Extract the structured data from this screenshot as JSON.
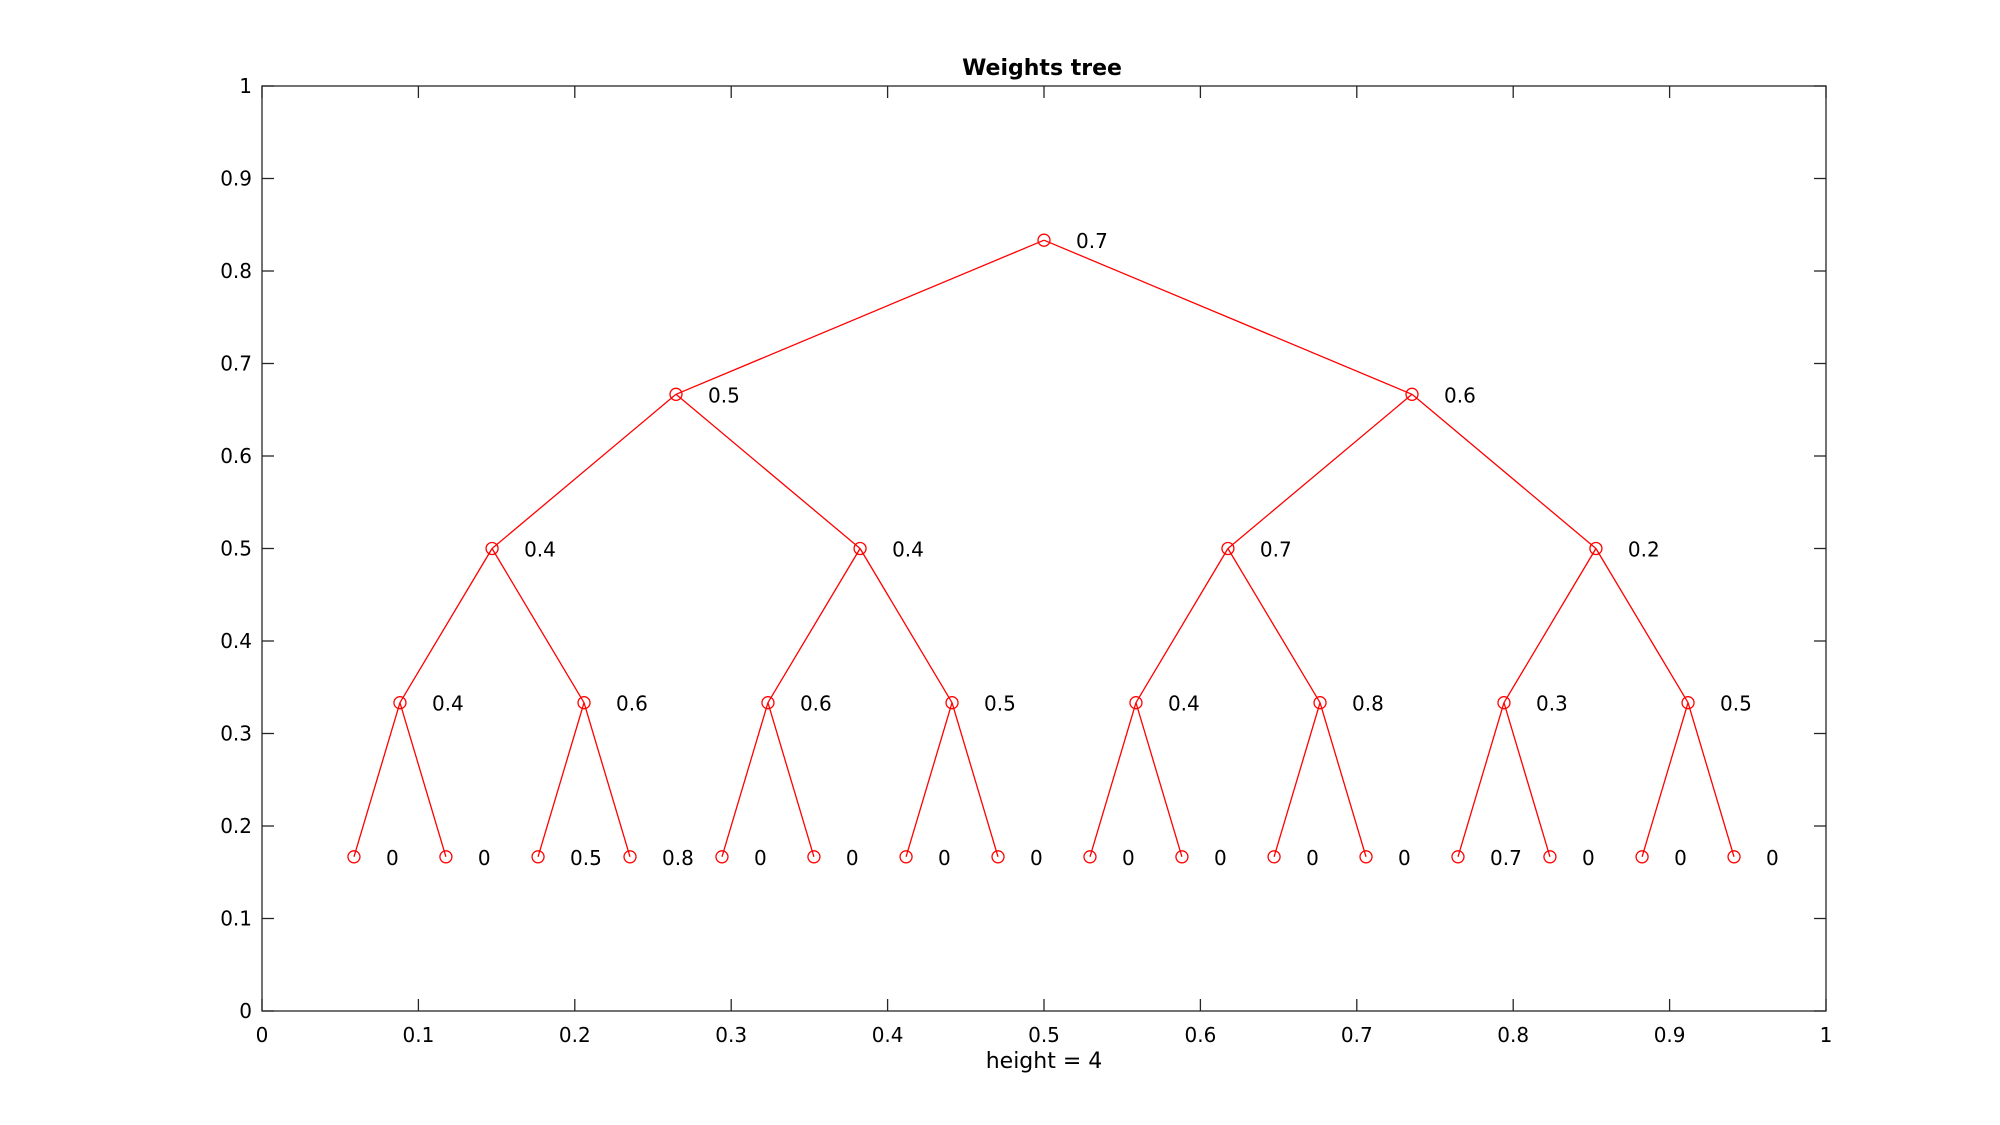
{
  "chart_data": {
    "type": "tree",
    "title": "Weights tree",
    "xlabel": "height = 4",
    "ylabel": "",
    "xlim": [
      0,
      1
    ],
    "ylim": [
      0,
      1
    ],
    "xticks": [
      "0",
      "0.1",
      "0.2",
      "0.3",
      "0.4",
      "0.5",
      "0.6",
      "0.7",
      "0.8",
      "0.9",
      "1"
    ],
    "yticks": [
      "0",
      "0.1",
      "0.2",
      "0.3",
      "0.4",
      "0.5",
      "0.6",
      "0.7",
      "0.8",
      "0.9",
      "1"
    ],
    "grid": false,
    "legend": "none",
    "colors": {
      "tree": "#ff0000",
      "axes": "#262626",
      "text": "#000000"
    },
    "nodes": [
      {
        "id": "n1",
        "x": 0.5,
        "y": 0.8333,
        "label": "0.7"
      },
      {
        "id": "n2",
        "x": 0.2647,
        "y": 0.6667,
        "label": "0.5"
      },
      {
        "id": "n3",
        "x": 0.7353,
        "y": 0.6667,
        "label": "0.6"
      },
      {
        "id": "n4",
        "x": 0.1471,
        "y": 0.5,
        "label": "0.4"
      },
      {
        "id": "n5",
        "x": 0.3824,
        "y": 0.5,
        "label": "0.4"
      },
      {
        "id": "n6",
        "x": 0.6176,
        "y": 0.5,
        "label": "0.7"
      },
      {
        "id": "n7",
        "x": 0.8529,
        "y": 0.5,
        "label": "0.2"
      },
      {
        "id": "n8",
        "x": 0.0882,
        "y": 0.3333,
        "label": "0.4"
      },
      {
        "id": "n9",
        "x": 0.2059,
        "y": 0.3333,
        "label": "0.6"
      },
      {
        "id": "n10",
        "x": 0.3235,
        "y": 0.3333,
        "label": "0.6"
      },
      {
        "id": "n11",
        "x": 0.4412,
        "y": 0.3333,
        "label": "0.5"
      },
      {
        "id": "n12",
        "x": 0.5588,
        "y": 0.3333,
        "label": "0.4"
      },
      {
        "id": "n13",
        "x": 0.6765,
        "y": 0.3333,
        "label": "0.8"
      },
      {
        "id": "n14",
        "x": 0.7941,
        "y": 0.3333,
        "label": "0.3"
      },
      {
        "id": "n15",
        "x": 0.9118,
        "y": 0.3333,
        "label": "0.5"
      },
      {
        "id": "n16",
        "x": 0.0588,
        "y": 0.1667,
        "label": "0"
      },
      {
        "id": "n17",
        "x": 0.1176,
        "y": 0.1667,
        "label": "0"
      },
      {
        "id": "n18",
        "x": 0.1765,
        "y": 0.1667,
        "label": "0.5"
      },
      {
        "id": "n19",
        "x": 0.2353,
        "y": 0.1667,
        "label": "0.8"
      },
      {
        "id": "n20",
        "x": 0.2941,
        "y": 0.1667,
        "label": "0"
      },
      {
        "id": "n21",
        "x": 0.3529,
        "y": 0.1667,
        "label": "0"
      },
      {
        "id": "n22",
        "x": 0.4118,
        "y": 0.1667,
        "label": "0"
      },
      {
        "id": "n23",
        "x": 0.4706,
        "y": 0.1667,
        "label": "0"
      },
      {
        "id": "n24",
        "x": 0.5294,
        "y": 0.1667,
        "label": "0"
      },
      {
        "id": "n25",
        "x": 0.5882,
        "y": 0.1667,
        "label": "0"
      },
      {
        "id": "n26",
        "x": 0.6471,
        "y": 0.1667,
        "label": "0"
      },
      {
        "id": "n27",
        "x": 0.7059,
        "y": 0.1667,
        "label": "0"
      },
      {
        "id": "n28",
        "x": 0.7647,
        "y": 0.1667,
        "label": "0.7"
      },
      {
        "id": "n29",
        "x": 0.8235,
        "y": 0.1667,
        "label": "0"
      },
      {
        "id": "n30",
        "x": 0.8824,
        "y": 0.1667,
        "label": "0"
      },
      {
        "id": "n31",
        "x": 0.9412,
        "y": 0.1667,
        "label": "0"
      }
    ],
    "edges": [
      [
        "n1",
        "n2"
      ],
      [
        "n1",
        "n3"
      ],
      [
        "n2",
        "n4"
      ],
      [
        "n2",
        "n5"
      ],
      [
        "n3",
        "n6"
      ],
      [
        "n3",
        "n7"
      ],
      [
        "n4",
        "n8"
      ],
      [
        "n4",
        "n9"
      ],
      [
        "n5",
        "n10"
      ],
      [
        "n5",
        "n11"
      ],
      [
        "n6",
        "n12"
      ],
      [
        "n6",
        "n13"
      ],
      [
        "n7",
        "n14"
      ],
      [
        "n7",
        "n15"
      ],
      [
        "n8",
        "n16"
      ],
      [
        "n8",
        "n17"
      ],
      [
        "n9",
        "n18"
      ],
      [
        "n9",
        "n19"
      ],
      [
        "n10",
        "n20"
      ],
      [
        "n10",
        "n21"
      ],
      [
        "n11",
        "n22"
      ],
      [
        "n11",
        "n23"
      ],
      [
        "n12",
        "n24"
      ],
      [
        "n12",
        "n25"
      ],
      [
        "n13",
        "n26"
      ],
      [
        "n13",
        "n27"
      ],
      [
        "n14",
        "n28"
      ],
      [
        "n14",
        "n29"
      ],
      [
        "n15",
        "n30"
      ],
      [
        "n15",
        "n31"
      ]
    ]
  }
}
